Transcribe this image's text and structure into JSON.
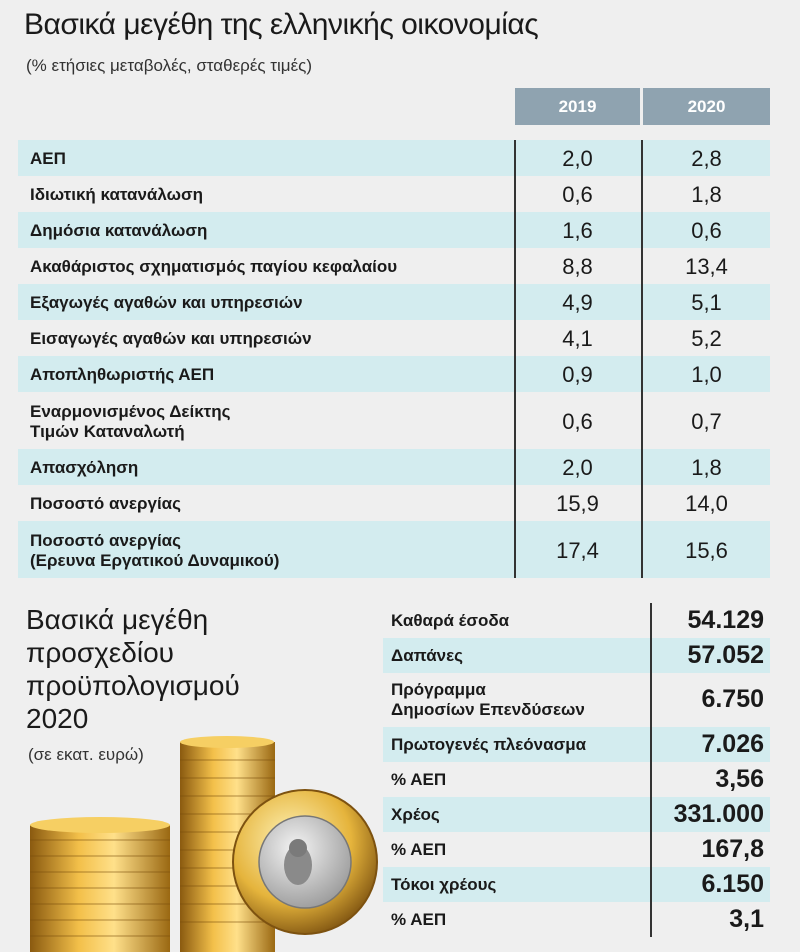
{
  "header": {
    "title": "Βασικά μεγέθη της ελληνικής οικονομίας",
    "subtitle": "(% ετήσιες μεταβολές, σταθερές τιμές)"
  },
  "table": {
    "columns": [
      "2019",
      "2020"
    ],
    "rows": [
      {
        "label": [
          "ΑΕΠ"
        ],
        "values": [
          "2,0",
          "2,8"
        ]
      },
      {
        "label": [
          "Ιδιωτική κατανάλωση"
        ],
        "values": [
          "0,6",
          "1,8"
        ]
      },
      {
        "label": [
          "Δημόσια κατανάλωση"
        ],
        "values": [
          "1,6",
          "0,6"
        ]
      },
      {
        "label": [
          "Ακαθάριστος σχηματισμός παγίου κεφαλαίου"
        ],
        "values": [
          "8,8",
          "13,4"
        ]
      },
      {
        "label": [
          "Εξαγωγές αγαθών και υπηρεσιών"
        ],
        "values": [
          "4,9",
          "5,1"
        ]
      },
      {
        "label": [
          "Εισαγωγές αγαθών και υπηρεσιών"
        ],
        "values": [
          "4,1",
          "5,2"
        ]
      },
      {
        "label": [
          "Αποπληθωριστής ΑΕΠ"
        ],
        "values": [
          "0,9",
          "1,0"
        ]
      },
      {
        "label": [
          "Εναρμονισμένος Δείκτης",
          "Τιμών Καταναλωτή"
        ],
        "values": [
          "0,6",
          "0,7"
        ]
      },
      {
        "label": [
          "Απασχόληση"
        ],
        "values": [
          "2,0",
          "1,8"
        ]
      },
      {
        "label": [
          "Ποσοστό ανεργίας"
        ],
        "values": [
          "15,9",
          "14,0"
        ]
      },
      {
        "label": [
          "Ποσοστό ανεργίας",
          "(Ερευνα Εργατικού Δυναμικού)"
        ],
        "values": [
          "17,4",
          "15,6"
        ]
      }
    ]
  },
  "budget": {
    "title": [
      "Βασικά μεγέθη",
      "προσχεδίου",
      "προϋπολογισμού",
      "2020"
    ],
    "subtitle": "(σε εκατ. ευρώ)",
    "rows": [
      {
        "label": [
          "Καθαρά έσοδα"
        ],
        "value": "54.129"
      },
      {
        "label": [
          "Δαπάνες"
        ],
        "value": "57.052"
      },
      {
        "label": [
          "Πρόγραμμα",
          "Δημοσίων Επενδύσεων"
        ],
        "value": "6.750"
      },
      {
        "label": [
          "Πρωτογενές πλεόνασμα"
        ],
        "value": "7.026"
      },
      {
        "label": [
          "% ΑΕΠ"
        ],
        "value": "3,56"
      },
      {
        "label": [
          "Χρέος"
        ],
        "value": "331.000"
      },
      {
        "label": [
          "% ΑΕΠ"
        ],
        "value": "167,8"
      },
      {
        "label": [
          "Τόκοι χρέους"
        ],
        "value": "6.150"
      },
      {
        "label": [
          "% ΑΕΠ"
        ],
        "value": "3,1"
      }
    ]
  }
}
